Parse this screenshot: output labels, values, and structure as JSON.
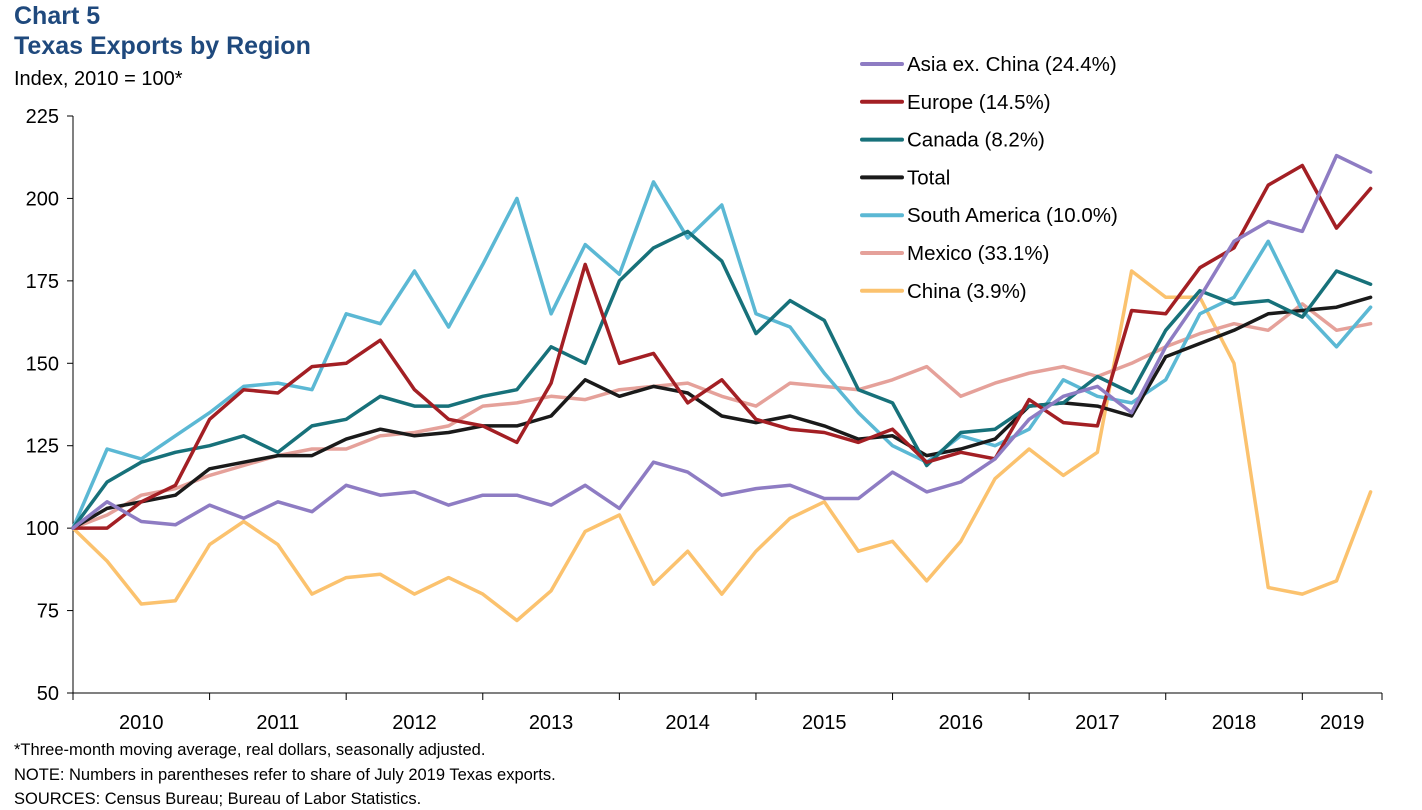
{
  "header": {
    "label": "Chart 5",
    "title": "Texas Exports by Region",
    "subtitle": "Index, 2010 = 100*"
  },
  "footer": {
    "note1": "*Three-month moving average, real dollars, seasonally adjusted.",
    "note2": "NOTE: Numbers in parentheses refer to share of July 2019 Texas exports.",
    "note3": "SOURCES: Census Bureau; Bureau of Labor Statistics."
  },
  "chart_data": {
    "type": "line",
    "title": "Texas Exports by Region",
    "ylabel": "Index, 2010 = 100*",
    "xlabel": "",
    "ylim": [
      50,
      225
    ],
    "yticks": [
      50,
      75,
      100,
      125,
      150,
      175,
      200,
      225
    ],
    "xticks": [
      "2010",
      "2011",
      "2012",
      "2013",
      "2014",
      "2015",
      "2016",
      "2017",
      "2018",
      "2019"
    ],
    "x_start": "2010-01",
    "x_end": "2019-07",
    "legend_position": "top-right",
    "grid": false,
    "series": [
      {
        "name": "Asia ex. China (24.4%)",
        "color": "#8e7cc3",
        "points": [
          [
            "2010-01",
            100
          ],
          [
            "2010-04",
            108
          ],
          [
            "2010-07",
            102
          ],
          [
            "2010-10",
            101
          ],
          [
            "2011-01",
            107
          ],
          [
            "2011-04",
            103
          ],
          [
            "2011-07",
            108
          ],
          [
            "2011-10",
            105
          ],
          [
            "2012-01",
            113
          ],
          [
            "2012-04",
            110
          ],
          [
            "2012-07",
            111
          ],
          [
            "2012-10",
            107
          ],
          [
            "2013-01",
            110
          ],
          [
            "2013-04",
            110
          ],
          [
            "2013-07",
            107
          ],
          [
            "2013-10",
            113
          ],
          [
            "2014-01",
            106
          ],
          [
            "2014-04",
            120
          ],
          [
            "2014-07",
            117
          ],
          [
            "2014-10",
            110
          ],
          [
            "2015-01",
            112
          ],
          [
            "2015-04",
            113
          ],
          [
            "2015-07",
            109
          ],
          [
            "2015-10",
            109
          ],
          [
            "2016-01",
            117
          ],
          [
            "2016-04",
            111
          ],
          [
            "2016-07",
            114
          ],
          [
            "2016-10",
            121
          ],
          [
            "2017-01",
            133
          ],
          [
            "2017-04",
            140
          ],
          [
            "2017-07",
            143
          ],
          [
            "2017-10",
            135
          ],
          [
            "2018-01",
            155
          ],
          [
            "2018-04",
            170
          ],
          [
            "2018-07",
            187
          ],
          [
            "2018-10",
            193
          ],
          [
            "2019-01",
            190
          ],
          [
            "2019-04",
            213
          ],
          [
            "2019-07",
            208
          ]
        ]
      },
      {
        "name": "Europe (14.5%)",
        "color": "#a31f24",
        "points": [
          [
            "2010-01",
            100
          ],
          [
            "2010-04",
            100
          ],
          [
            "2010-07",
            108
          ],
          [
            "2010-10",
            113
          ],
          [
            "2011-01",
            133
          ],
          [
            "2011-04",
            142
          ],
          [
            "2011-07",
            141
          ],
          [
            "2011-10",
            149
          ],
          [
            "2012-01",
            150
          ],
          [
            "2012-04",
            157
          ],
          [
            "2012-07",
            142
          ],
          [
            "2012-10",
            133
          ],
          [
            "2013-01",
            131
          ],
          [
            "2013-04",
            126
          ],
          [
            "2013-07",
            144
          ],
          [
            "2013-10",
            180
          ],
          [
            "2014-01",
            150
          ],
          [
            "2014-04",
            153
          ],
          [
            "2014-07",
            138
          ],
          [
            "2014-10",
            145
          ],
          [
            "2015-01",
            133
          ],
          [
            "2015-04",
            130
          ],
          [
            "2015-07",
            129
          ],
          [
            "2015-10",
            126
          ],
          [
            "2016-01",
            130
          ],
          [
            "2016-04",
            120
          ],
          [
            "2016-07",
            123
          ],
          [
            "2016-10",
            121
          ],
          [
            "2017-01",
            139
          ],
          [
            "2017-04",
            132
          ],
          [
            "2017-07",
            131
          ],
          [
            "2017-10",
            166
          ],
          [
            "2018-01",
            165
          ],
          [
            "2018-04",
            179
          ],
          [
            "2018-07",
            185
          ],
          [
            "2018-10",
            204
          ],
          [
            "2019-01",
            210
          ],
          [
            "2019-04",
            191
          ],
          [
            "2019-07",
            203
          ]
        ]
      },
      {
        "name": "Canada (8.2%)",
        "color": "#17717a",
        "points": [
          [
            "2010-01",
            100
          ],
          [
            "2010-04",
            114
          ],
          [
            "2010-07",
            120
          ],
          [
            "2010-10",
            123
          ],
          [
            "2011-01",
            125
          ],
          [
            "2011-04",
            128
          ],
          [
            "2011-07",
            123
          ],
          [
            "2011-10",
            131
          ],
          [
            "2012-01",
            133
          ],
          [
            "2012-04",
            140
          ],
          [
            "2012-07",
            137
          ],
          [
            "2012-10",
            137
          ],
          [
            "2013-01",
            140
          ],
          [
            "2013-04",
            142
          ],
          [
            "2013-07",
            155
          ],
          [
            "2013-10",
            150
          ],
          [
            "2014-01",
            175
          ],
          [
            "2014-04",
            185
          ],
          [
            "2014-07",
            190
          ],
          [
            "2014-10",
            181
          ],
          [
            "2015-01",
            159
          ],
          [
            "2015-04",
            169
          ],
          [
            "2015-07",
            163
          ],
          [
            "2015-10",
            142
          ],
          [
            "2016-01",
            138
          ],
          [
            "2016-04",
            119
          ],
          [
            "2016-07",
            129
          ],
          [
            "2016-10",
            130
          ],
          [
            "2017-01",
            137
          ],
          [
            "2017-04",
            138
          ],
          [
            "2017-07",
            146
          ],
          [
            "2017-10",
            141
          ],
          [
            "2018-01",
            160
          ],
          [
            "2018-04",
            172
          ],
          [
            "2018-07",
            168
          ],
          [
            "2018-10",
            169
          ],
          [
            "2019-01",
            164
          ],
          [
            "2019-04",
            178
          ],
          [
            "2019-07",
            174
          ]
        ]
      },
      {
        "name": "Total",
        "color": "#1a1a1a",
        "points": [
          [
            "2010-01",
            100
          ],
          [
            "2010-04",
            106
          ],
          [
            "2010-07",
            108
          ],
          [
            "2010-10",
            110
          ],
          [
            "2011-01",
            118
          ],
          [
            "2011-04",
            120
          ],
          [
            "2011-07",
            122
          ],
          [
            "2011-10",
            122
          ],
          [
            "2012-01",
            127
          ],
          [
            "2012-04",
            130
          ],
          [
            "2012-07",
            128
          ],
          [
            "2012-10",
            129
          ],
          [
            "2013-01",
            131
          ],
          [
            "2013-04",
            131
          ],
          [
            "2013-07",
            134
          ],
          [
            "2013-10",
            145
          ],
          [
            "2014-01",
            140
          ],
          [
            "2014-04",
            143
          ],
          [
            "2014-07",
            141
          ],
          [
            "2014-10",
            134
          ],
          [
            "2015-01",
            132
          ],
          [
            "2015-04",
            134
          ],
          [
            "2015-07",
            131
          ],
          [
            "2015-10",
            127
          ],
          [
            "2016-01",
            128
          ],
          [
            "2016-04",
            122
          ],
          [
            "2016-07",
            124
          ],
          [
            "2016-10",
            127
          ],
          [
            "2017-01",
            137
          ],
          [
            "2017-04",
            138
          ],
          [
            "2017-07",
            137
          ],
          [
            "2017-10",
            134
          ],
          [
            "2018-01",
            152
          ],
          [
            "2018-04",
            156
          ],
          [
            "2018-07",
            160
          ],
          [
            "2018-10",
            165
          ],
          [
            "2019-01",
            166
          ],
          [
            "2019-04",
            167
          ],
          [
            "2019-07",
            170
          ]
        ]
      },
      {
        "name": "South America (10.0%)",
        "color": "#5bb8d4",
        "points": [
          [
            "2010-01",
            100
          ],
          [
            "2010-04",
            124
          ],
          [
            "2010-07",
            121
          ],
          [
            "2010-10",
            128
          ],
          [
            "2011-01",
            135
          ],
          [
            "2011-04",
            143
          ],
          [
            "2011-07",
            144
          ],
          [
            "2011-10",
            142
          ],
          [
            "2012-01",
            165
          ],
          [
            "2012-04",
            162
          ],
          [
            "2012-07",
            178
          ],
          [
            "2012-10",
            161
          ],
          [
            "2013-01",
            180
          ],
          [
            "2013-04",
            200
          ],
          [
            "2013-07",
            165
          ],
          [
            "2013-10",
            186
          ],
          [
            "2014-01",
            177
          ],
          [
            "2014-04",
            205
          ],
          [
            "2014-07",
            188
          ],
          [
            "2014-10",
            198
          ],
          [
            "2015-01",
            165
          ],
          [
            "2015-04",
            161
          ],
          [
            "2015-07",
            147
          ],
          [
            "2015-10",
            135
          ],
          [
            "2016-01",
            125
          ],
          [
            "2016-04",
            120
          ],
          [
            "2016-07",
            128
          ],
          [
            "2016-10",
            125
          ],
          [
            "2017-01",
            130
          ],
          [
            "2017-04",
            145
          ],
          [
            "2017-07",
            140
          ],
          [
            "2017-10",
            138
          ],
          [
            "2018-01",
            145
          ],
          [
            "2018-04",
            165
          ],
          [
            "2018-07",
            170
          ],
          [
            "2018-10",
            187
          ],
          [
            "2019-01",
            166
          ],
          [
            "2019-04",
            155
          ],
          [
            "2019-07",
            167
          ]
        ]
      },
      {
        "name": "Mexico (33.1%)",
        "color": "#e5a19a",
        "points": [
          [
            "2010-01",
            100
          ],
          [
            "2010-04",
            104
          ],
          [
            "2010-07",
            110
          ],
          [
            "2010-10",
            112
          ],
          [
            "2011-01",
            116
          ],
          [
            "2011-04",
            119
          ],
          [
            "2011-07",
            122
          ],
          [
            "2011-10",
            124
          ],
          [
            "2012-01",
            124
          ],
          [
            "2012-04",
            128
          ],
          [
            "2012-07",
            129
          ],
          [
            "2012-10",
            131
          ],
          [
            "2013-01",
            137
          ],
          [
            "2013-04",
            138
          ],
          [
            "2013-07",
            140
          ],
          [
            "2013-10",
            139
          ],
          [
            "2014-01",
            142
          ],
          [
            "2014-04",
            143
          ],
          [
            "2014-07",
            144
          ],
          [
            "2014-10",
            140
          ],
          [
            "2015-01",
            137
          ],
          [
            "2015-04",
            144
          ],
          [
            "2015-07",
            143
          ],
          [
            "2015-10",
            142
          ],
          [
            "2016-01",
            145
          ],
          [
            "2016-04",
            149
          ],
          [
            "2016-07",
            140
          ],
          [
            "2016-10",
            144
          ],
          [
            "2017-01",
            147
          ],
          [
            "2017-04",
            149
          ],
          [
            "2017-07",
            146
          ],
          [
            "2017-10",
            150
          ],
          [
            "2018-01",
            155
          ],
          [
            "2018-04",
            159
          ],
          [
            "2018-07",
            162
          ],
          [
            "2018-10",
            160
          ],
          [
            "2019-01",
            168
          ],
          [
            "2019-04",
            160
          ],
          [
            "2019-07",
            162
          ]
        ]
      },
      {
        "name": "China (3.9%)",
        "color": "#fbc26e",
        "points": [
          [
            "2010-01",
            100
          ],
          [
            "2010-04",
            90
          ],
          [
            "2010-07",
            77
          ],
          [
            "2010-10",
            78
          ],
          [
            "2011-01",
            95
          ],
          [
            "2011-04",
            102
          ],
          [
            "2011-07",
            95
          ],
          [
            "2011-10",
            80
          ],
          [
            "2012-01",
            85
          ],
          [
            "2012-04",
            86
          ],
          [
            "2012-07",
            80
          ],
          [
            "2012-10",
            85
          ],
          [
            "2013-01",
            80
          ],
          [
            "2013-04",
            72
          ],
          [
            "2013-07",
            81
          ],
          [
            "2013-10",
            99
          ],
          [
            "2014-01",
            104
          ],
          [
            "2014-04",
            83
          ],
          [
            "2014-07",
            93
          ],
          [
            "2014-10",
            80
          ],
          [
            "2015-01",
            93
          ],
          [
            "2015-04",
            103
          ],
          [
            "2015-07",
            108
          ],
          [
            "2015-10",
            93
          ],
          [
            "2016-01",
            96
          ],
          [
            "2016-04",
            84
          ],
          [
            "2016-07",
            96
          ],
          [
            "2016-10",
            115
          ],
          [
            "2017-01",
            124
          ],
          [
            "2017-04",
            116
          ],
          [
            "2017-07",
            123
          ],
          [
            "2017-10",
            178
          ],
          [
            "2018-01",
            170
          ],
          [
            "2018-04",
            170
          ],
          [
            "2018-07",
            150
          ],
          [
            "2018-10",
            82
          ],
          [
            "2019-01",
            80
          ],
          [
            "2019-04",
            84
          ],
          [
            "2019-07",
            111
          ]
        ]
      }
    ]
  }
}
